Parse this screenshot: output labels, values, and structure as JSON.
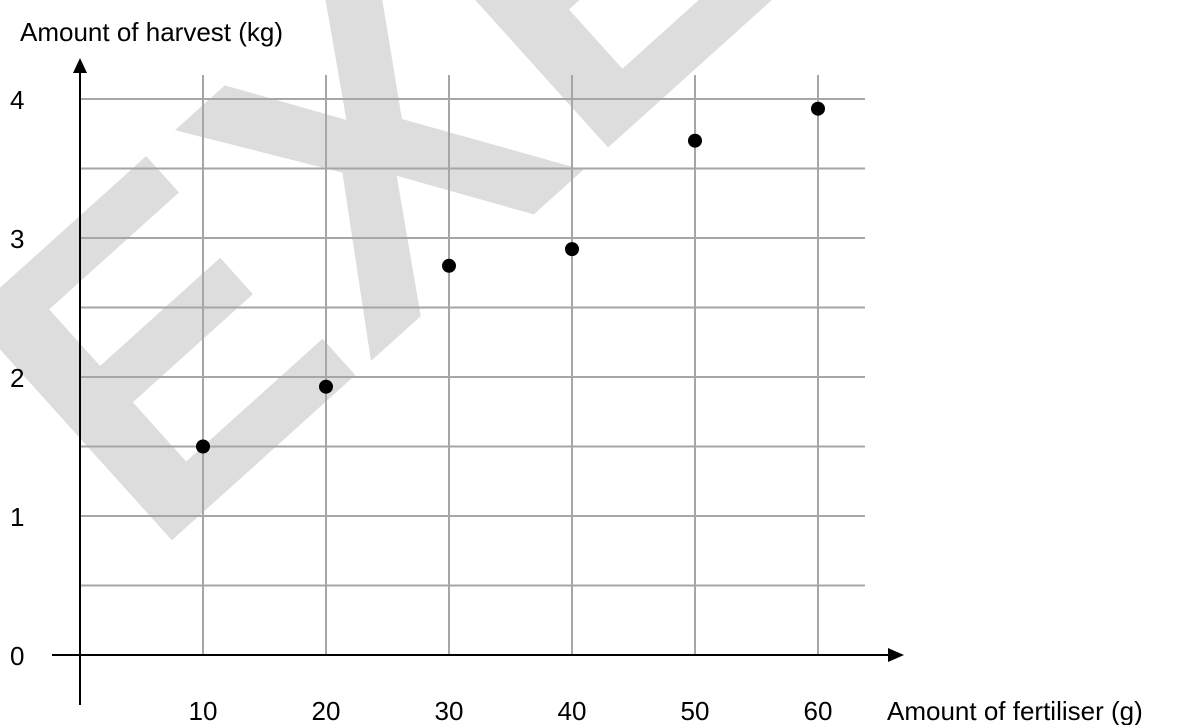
{
  "chart_data": {
    "type": "scatter",
    "title": "",
    "xlabel": "Amount of fertiliser (g)",
    "ylabel": "Amount of harvest (kg)",
    "xlim": [
      0,
      60
    ],
    "ylim": [
      0,
      4
    ],
    "x_ticks": [
      "10",
      "20",
      "30",
      "40",
      "50",
      "60"
    ],
    "y_ticks": [
      "0",
      "1",
      "2",
      "3",
      "4"
    ],
    "grid": true,
    "points": [
      {
        "x": 10,
        "y": 1.5
      },
      {
        "x": 20,
        "y": 1.93
      },
      {
        "x": 30,
        "y": 2.8
      },
      {
        "x": 40,
        "y": 2.92
      },
      {
        "x": 50,
        "y": 3.7
      },
      {
        "x": 60,
        "y": 3.93
      }
    ],
    "point_color": "#000000",
    "grid_color": "#a6a6a6",
    "watermark": "EXEMPLAR",
    "watermark_color": "#dddddd"
  }
}
